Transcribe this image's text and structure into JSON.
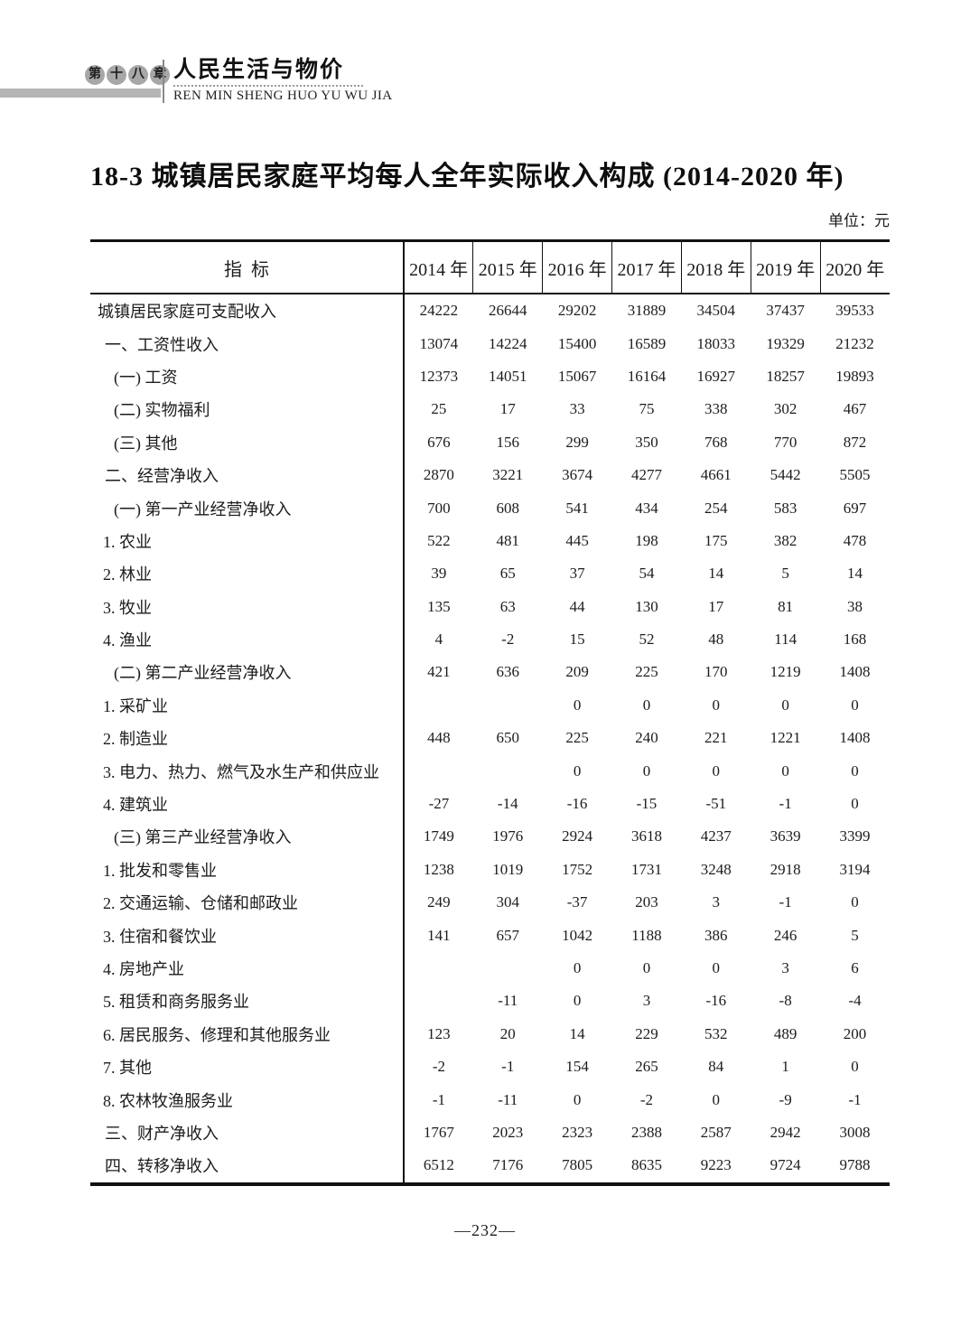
{
  "header": {
    "chapter_chars": [
      "第",
      "十",
      "八",
      "章"
    ],
    "chapter_title": "人民生活与物价",
    "chapter_pinyin": "REN MIN SHENG HUO YU WU JIA"
  },
  "title": "18-3  城镇居民家庭平均每人全年实际收入构成 (2014-2020 年)",
  "unit_label": "单位：元",
  "colors": {
    "text": "#1c1c1c",
    "gray_bar": "#b5b5b5",
    "badge_circle": "#a7a7a7",
    "table_border": "#111111"
  },
  "table": {
    "indicator_header": "指  标",
    "year_columns": [
      "2014 年",
      "2015 年",
      "2016 年",
      "2017 年",
      "2018 年",
      "2019 年",
      "2020 年"
    ],
    "rows": [
      {
        "label": "城镇居民家庭可支配收入",
        "indent": 0,
        "values": [
          "24222",
          "26644",
          "29202",
          "31889",
          "34504",
          "37437",
          "39533"
        ]
      },
      {
        "label": "一、工资性收入",
        "indent": 1,
        "values": [
          "13074",
          "14224",
          "15400",
          "16589",
          "18033",
          "19329",
          "21232"
        ]
      },
      {
        "label": "(一) 工资",
        "indent": 2,
        "values": [
          "12373",
          "14051",
          "15067",
          "16164",
          "16927",
          "18257",
          "19893"
        ]
      },
      {
        "label": "(二) 实物福利",
        "indent": 2,
        "values": [
          "25",
          "17",
          "33",
          "75",
          "338",
          "302",
          "467"
        ]
      },
      {
        "label": "(三) 其他",
        "indent": 2,
        "values": [
          "676",
          "156",
          "299",
          "350",
          "768",
          "770",
          "872"
        ]
      },
      {
        "label": "二、经营净收入",
        "indent": 1,
        "values": [
          "2870",
          "3221",
          "3674",
          "4277",
          "4661",
          "5442",
          "5505"
        ]
      },
      {
        "label": "(一) 第一产业经营净收入",
        "indent": 2,
        "values": [
          "700",
          "608",
          "541",
          "434",
          "254",
          "583",
          "697"
        ]
      },
      {
        "label": "1. 农业",
        "indent": 3,
        "values": [
          "522",
          "481",
          "445",
          "198",
          "175",
          "382",
          "478"
        ]
      },
      {
        "label": "2. 林业",
        "indent": 3,
        "values": [
          "39",
          "65",
          "37",
          "54",
          "14",
          "5",
          "14"
        ]
      },
      {
        "label": "3. 牧业",
        "indent": 3,
        "values": [
          "135",
          "63",
          "44",
          "130",
          "17",
          "81",
          "38"
        ]
      },
      {
        "label": "4. 渔业",
        "indent": 3,
        "values": [
          "4",
          "-2",
          "15",
          "52",
          "48",
          "114",
          "168"
        ]
      },
      {
        "label": "(二) 第二产业经营净收入",
        "indent": 2,
        "values": [
          "421",
          "636",
          "209",
          "225",
          "170",
          "1219",
          "1408"
        ]
      },
      {
        "label": "1. 采矿业",
        "indent": 3,
        "values": [
          "",
          "",
          "0",
          "0",
          "0",
          "0",
          "0"
        ]
      },
      {
        "label": "2. 制造业",
        "indent": 3,
        "values": [
          "448",
          "650",
          "225",
          "240",
          "221",
          "1221",
          "1408"
        ]
      },
      {
        "label": "3. 电力、热力、燃气及水生产和供应业",
        "indent": 3,
        "values": [
          "",
          "",
          "0",
          "0",
          "0",
          "0",
          "0"
        ]
      },
      {
        "label": "4. 建筑业",
        "indent": 3,
        "values": [
          "-27",
          "-14",
          "-16",
          "-15",
          "-51",
          "-1",
          "0"
        ]
      },
      {
        "label": "(三) 第三产业经营净收入",
        "indent": 2,
        "values": [
          "1749",
          "1976",
          "2924",
          "3618",
          "4237",
          "3639",
          "3399"
        ]
      },
      {
        "label": "1. 批发和零售业",
        "indent": 3,
        "values": [
          "1238",
          "1019",
          "1752",
          "1731",
          "3248",
          "2918",
          "3194"
        ]
      },
      {
        "label": "2. 交通运输、仓储和邮政业",
        "indent": 3,
        "values": [
          "249",
          "304",
          "-37",
          "203",
          "3",
          "-1",
          "0"
        ]
      },
      {
        "label": "3. 住宿和餐饮业",
        "indent": 3,
        "values": [
          "141",
          "657",
          "1042",
          "1188",
          "386",
          "246",
          "5"
        ]
      },
      {
        "label": "4. 房地产业",
        "indent": 3,
        "values": [
          "",
          "",
          "0",
          "0",
          "0",
          "3",
          "6"
        ]
      },
      {
        "label": "5. 租赁和商务服务业",
        "indent": 3,
        "values": [
          "",
          "-11",
          "0",
          "3",
          "-16",
          "-8",
          "-4"
        ]
      },
      {
        "label": "6. 居民服务、修理和其他服务业",
        "indent": 3,
        "values": [
          "123",
          "20",
          "14",
          "229",
          "532",
          "489",
          "200"
        ]
      },
      {
        "label": "7. 其他",
        "indent": 3,
        "values": [
          "-2",
          "-1",
          "154",
          "265",
          "84",
          "1",
          "0"
        ]
      },
      {
        "label": "8. 农林牧渔服务业",
        "indent": 3,
        "values": [
          "-1",
          "-11",
          "0",
          "-2",
          "0",
          "-9",
          "-1"
        ]
      },
      {
        "label": "三、财产净收入",
        "indent": 1,
        "values": [
          "1767",
          "2023",
          "2323",
          "2388",
          "2587",
          "2942",
          "3008"
        ]
      },
      {
        "label": "四、转移净收入",
        "indent": 1,
        "values": [
          "6512",
          "7176",
          "7805",
          "8635",
          "9223",
          "9724",
          "9788"
        ]
      }
    ]
  },
  "footer": {
    "page_number": "—232—"
  }
}
